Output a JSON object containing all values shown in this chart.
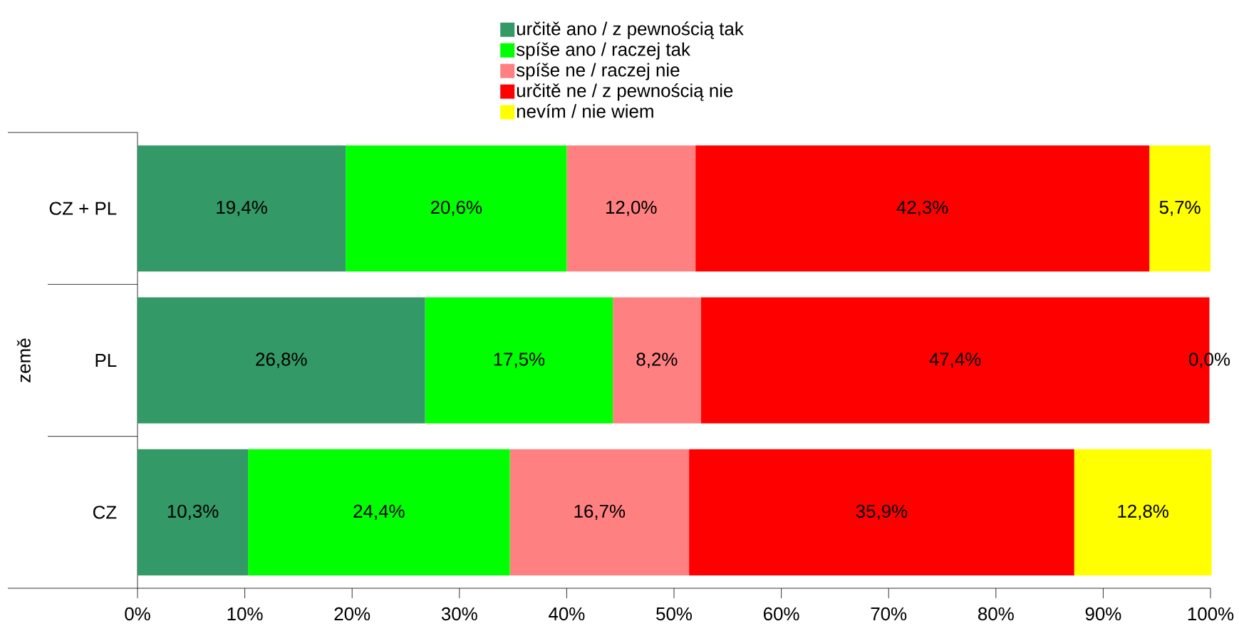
{
  "chart_data": {
    "type": "bar",
    "orientation": "horizontal",
    "stacked": true,
    "ylabel": "země",
    "categories": [
      "CZ + PL",
      "PL",
      "CZ"
    ],
    "series": [
      {
        "name": "určitě ano / z pewnością tak",
        "color": "#339966",
        "values": [
          19.4,
          26.8,
          10.3
        ],
        "value_labels": [
          "19,4%",
          "26,8%",
          "10,3%"
        ]
      },
      {
        "name": "spíše ano / raczej tak",
        "color": "#00ff00",
        "values": [
          20.6,
          17.5,
          24.4
        ],
        "value_labels": [
          "20,6%",
          "17,5%",
          "24,4%"
        ]
      },
      {
        "name": "spíše ne / raczej nie",
        "color": "#ff8080",
        "values": [
          12.0,
          8.2,
          16.7
        ],
        "value_labels": [
          "12,0%",
          "8,2%",
          "16,7%"
        ]
      },
      {
        "name": "určitě ne / z pewnością nie",
        "color": "#ff0000",
        "values": [
          42.3,
          47.4,
          35.9
        ],
        "value_labels": [
          "42,3%",
          "47,4%",
          "35,9%"
        ]
      },
      {
        "name": "nevím / nie wiem",
        "color": "#ffff00",
        "values": [
          5.7,
          0.0,
          12.8
        ],
        "value_labels": [
          "5,7%",
          "0,0%",
          "12,8%"
        ]
      }
    ],
    "xlim": [
      0,
      100
    ],
    "xticks": [
      {
        "value": 0,
        "label": "0%"
      },
      {
        "value": 10,
        "label": "10%"
      },
      {
        "value": 20,
        "label": "20%"
      },
      {
        "value": 30,
        "label": "30%"
      },
      {
        "value": 40,
        "label": "40%"
      },
      {
        "value": 50,
        "label": "50%"
      },
      {
        "value": 60,
        "label": "60%"
      },
      {
        "value": 70,
        "label": "70%"
      },
      {
        "value": 80,
        "label": "80%"
      },
      {
        "value": 90,
        "label": "90%"
      },
      {
        "value": 100,
        "label": "100%"
      }
    ],
    "legend": "top"
  }
}
